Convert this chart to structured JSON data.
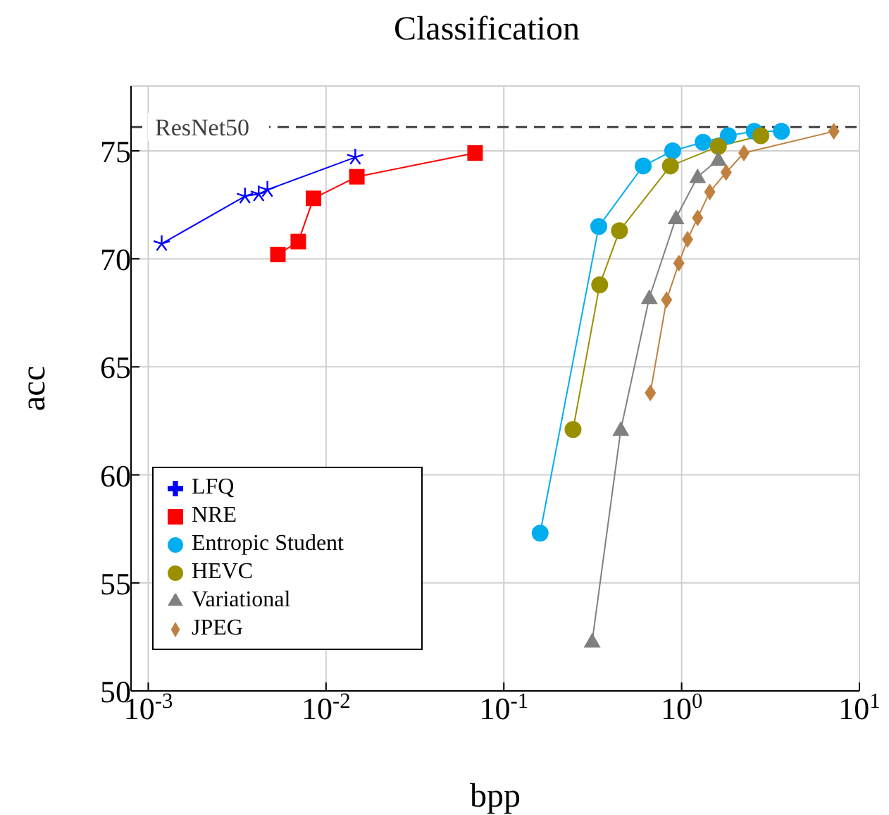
{
  "chart_data": {
    "type": "line",
    "title": "Classification",
    "xlabel": "bpp",
    "ylabel": "acc",
    "log": "x",
    "xlim": [
      0.0008,
      10
    ],
    "xticks": [
      {
        "value": 0.001,
        "label": "10$^{-3}$"
      },
      {
        "value": 0.01,
        "label": "10$^{-2}$"
      },
      {
        "value": 0.1,
        "label": "10$^{-1}$"
      },
      {
        "value": 1,
        "label": "10$^{0}$"
      },
      {
        "value": 10,
        "label": "10$^{1}$"
      }
    ],
    "ylim": [
      50,
      78
    ],
    "yticks": [
      50,
      55,
      60,
      65,
      70,
      75
    ],
    "grid": true,
    "legend": "bottom left",
    "ref_lines": [
      {
        "axis": "y",
        "value": 76.1,
        "label": "ResNet50",
        "color": "#404040",
        "line_style": "dashed"
      }
    ],
    "series": [
      {
        "name": "LFQ",
        "color": "#0000ff",
        "marker": "cross",
        "x": [
          0.00119,
          0.0035,
          0.00418,
          0.00468,
          0.0146
        ],
        "values": [
          70.7,
          72.9,
          73.0,
          73.2,
          74.7
        ]
      },
      {
        "name": "NRE",
        "color": "#ff0000",
        "marker": "square",
        "x": [
          0.00536,
          0.00698,
          0.0085,
          0.0149,
          0.0689
        ],
        "values": [
          70.2,
          70.8,
          72.8,
          73.8,
          74.9
        ]
      },
      {
        "name": "Entropic Student",
        "color": "#00aeef",
        "marker": "circle",
        "x": [
          0.16,
          0.342,
          0.608,
          0.89,
          1.32,
          1.83,
          2.56,
          3.64
        ],
        "values": [
          57.3,
          71.5,
          74.3,
          75.0,
          75.4,
          75.7,
          75.9,
          75.9
        ]
      },
      {
        "name": "HEVC",
        "color": "#999000",
        "marker": "circle",
        "x": [
          0.245,
          0.346,
          0.447,
          0.865,
          1.61,
          2.79
        ],
        "values": [
          62.1,
          68.8,
          71.3,
          74.3,
          75.2,
          75.7
        ]
      },
      {
        "name": "Variational",
        "color": "#808080",
        "marker": "triangle",
        "x": [
          0.314,
          0.455,
          0.658,
          0.93,
          1.23,
          1.61
        ],
        "values": [
          52.3,
          62.1,
          68.2,
          71.9,
          73.8,
          74.6
        ]
      },
      {
        "name": "JPEG",
        "color": "#bf8040",
        "marker": "diamond",
        "x": [
          0.667,
          0.823,
          0.965,
          1.08,
          1.23,
          1.44,
          1.78,
          2.24,
          7.18
        ],
        "values": [
          63.8,
          68.1,
          69.8,
          70.9,
          71.9,
          73.1,
          74.0,
          74.9,
          75.9
        ]
      }
    ]
  }
}
